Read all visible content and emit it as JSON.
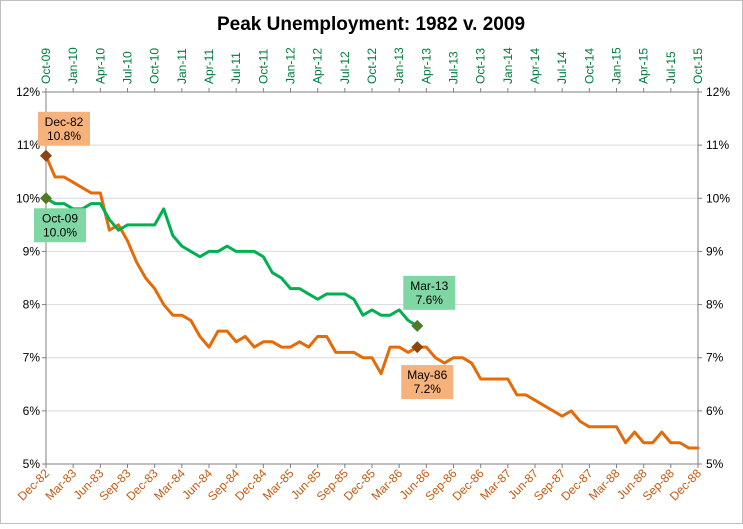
{
  "chart_data": {
    "type": "line",
    "title": "Peak Unemployment:  1982 v. 2009",
    "ylim": [
      0.05,
      0.12
    ],
    "y_ticks": [
      "5%",
      "6%",
      "7%",
      "8%",
      "9%",
      "10%",
      "11%",
      "12%"
    ],
    "y_tick_values": [
      0.05,
      0.06,
      0.07,
      0.08,
      0.09,
      0.1,
      0.11,
      0.12
    ],
    "grid": true,
    "x_bottom_ticks": [
      "Dec-82",
      "Mar-83",
      "Jun-83",
      "Sep-83",
      "Dec-83",
      "Mar-84",
      "Jun-84",
      "Sep-84",
      "Dec-84",
      "Mar-85",
      "Jun-85",
      "Sep-85",
      "Dec-85",
      "Mar-86",
      "Jun-86",
      "Sep-86",
      "Dec-86",
      "Mar-87",
      "Jun-87",
      "Sep-87",
      "Dec-87",
      "Mar-88",
      "Jun-88",
      "Sep-88",
      "Dec-88"
    ],
    "x_top_ticks": [
      "Oct-09",
      "Jan-10",
      "Apr-10",
      "Jul-10",
      "Oct-10",
      "Jan-11",
      "Apr-11",
      "Jul-11",
      "Oct-11",
      "Jan-12",
      "Apr-12",
      "Jul-12",
      "Oct-12",
      "Jan-13",
      "Apr-13",
      "Jul-13",
      "Oct-13",
      "Jan-14",
      "Apr-14",
      "Jul-14",
      "Oct-14",
      "Jan-15",
      "Apr-15",
      "Jul-15",
      "Oct-15"
    ],
    "month_count": 73,
    "series": [
      {
        "name": "1982",
        "color": "#e36c09",
        "axis": "bottom",
        "start": "Dec-82",
        "values": [
          0.108,
          0.104,
          0.104,
          0.103,
          0.102,
          0.101,
          0.101,
          0.094,
          0.095,
          0.092,
          0.088,
          0.085,
          0.083,
          0.08,
          0.078,
          0.078,
          0.077,
          0.074,
          0.072,
          0.075,
          0.075,
          0.073,
          0.074,
          0.072,
          0.073,
          0.073,
          0.072,
          0.072,
          0.073,
          0.072,
          0.074,
          0.074,
          0.071,
          0.071,
          0.071,
          0.07,
          0.07,
          0.067,
          0.072,
          0.072,
          0.071,
          0.072,
          0.072,
          0.07,
          0.069,
          0.07,
          0.07,
          0.069,
          0.066,
          0.066,
          0.066,
          0.066,
          0.063,
          0.063,
          0.062,
          0.061,
          0.06,
          0.059,
          0.06,
          0.058,
          0.057,
          0.057,
          0.057,
          0.057,
          0.054,
          0.056,
          0.054,
          0.054,
          0.056,
          0.054,
          0.054,
          0.053,
          0.053
        ]
      },
      {
        "name": "2009",
        "color": "#00b050",
        "axis": "top",
        "start": "Oct-09",
        "values": [
          0.1,
          0.099,
          0.099,
          0.098,
          0.098,
          0.099,
          0.099,
          0.096,
          0.094,
          0.095,
          0.095,
          0.095,
          0.095,
          0.098,
          0.093,
          0.091,
          0.09,
          0.089,
          0.09,
          0.09,
          0.091,
          0.09,
          0.09,
          0.09,
          0.089,
          0.086,
          0.085,
          0.083,
          0.083,
          0.082,
          0.081,
          0.082,
          0.082,
          0.082,
          0.081,
          0.078,
          0.079,
          0.078,
          0.078,
          0.079,
          0.077,
          0.076
        ]
      }
    ],
    "annotations": [
      {
        "line1": "Dec-82",
        "line2": "10.8%",
        "series": "1982",
        "index": 0,
        "box_color": "#f7b27b"
      },
      {
        "line1": "Oct-09",
        "line2": "10.0%",
        "series": "2009",
        "index": 0,
        "box_color": "#7fd8a4"
      },
      {
        "line1": "Mar-13",
        "line2": "7.6%",
        "series": "2009",
        "index": 41,
        "box_color": "#7fd8a4"
      },
      {
        "line1": "May-86",
        "line2": "7.2%",
        "series": "1982",
        "index": 41,
        "box_color": "#f7b27b"
      }
    ],
    "colors": {
      "series_1982": "#e36c09",
      "series_2009": "#00b050",
      "marker_1982": "#8b4513",
      "marker_2009": "#4f7a28",
      "top_axis_text": "#007a3d",
      "bottom_axis_text": "#c55a11",
      "gridline": "#d9d9d9"
    }
  }
}
